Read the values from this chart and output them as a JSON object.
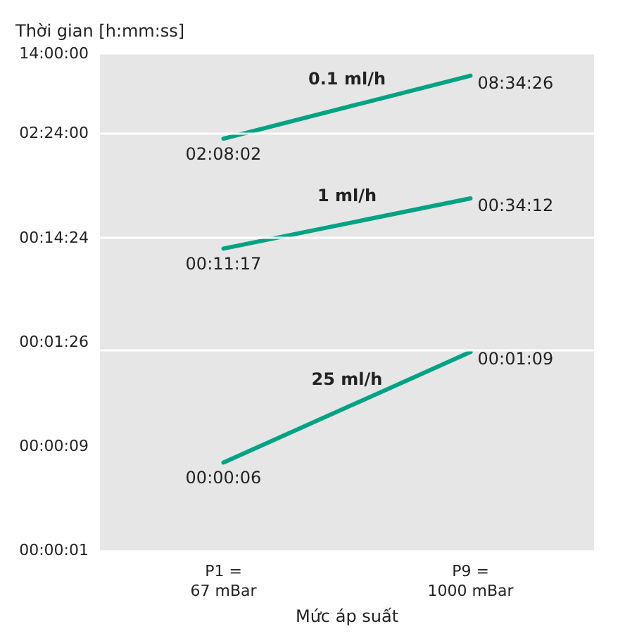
{
  "chart_data": {
    "type": "line",
    "ylabel": "Thời gian [h:mm:ss]",
    "xlabel": "Mức áp suất",
    "categories": [
      "P1 =\n67 mBar",
      "P9 =\n1000 mBar"
    ],
    "log": "y",
    "ylim": [
      0.00024,
      14
    ],
    "yticks": [
      {
        "value": 0.00024,
        "label": "00:00:01"
      },
      {
        "value": 0.0024,
        "label": "00:00:09"
      },
      {
        "value": 0.024,
        "label": "00:01:26"
      },
      {
        "value": 0.24,
        "label": "00:14:24"
      },
      {
        "value": 2.4,
        "label": "02:24:00"
      },
      {
        "value": 14,
        "label": "14:00:00"
      }
    ],
    "grid": "y",
    "marker": "none",
    "line_style": "solid",
    "series": [
      {
        "name": "0.1 ml/h",
        "color": "#00a383",
        "values": [
          2.1339,
          8.5739
        ],
        "value_labels": [
          "02:08:02",
          "08:34:26"
        ]
      },
      {
        "name": "1 ml/h",
        "color": "#00a383",
        "values": [
          0.18806,
          0.57
        ],
        "value_labels": [
          "00:11:17",
          "00:34:12"
        ]
      },
      {
        "name": "25 ml/h",
        "color": "#00a383",
        "values": [
          0.0016667,
          0.019167
        ],
        "value_labels": [
          "00:00:06",
          "00:01:09"
        ]
      }
    ]
  }
}
